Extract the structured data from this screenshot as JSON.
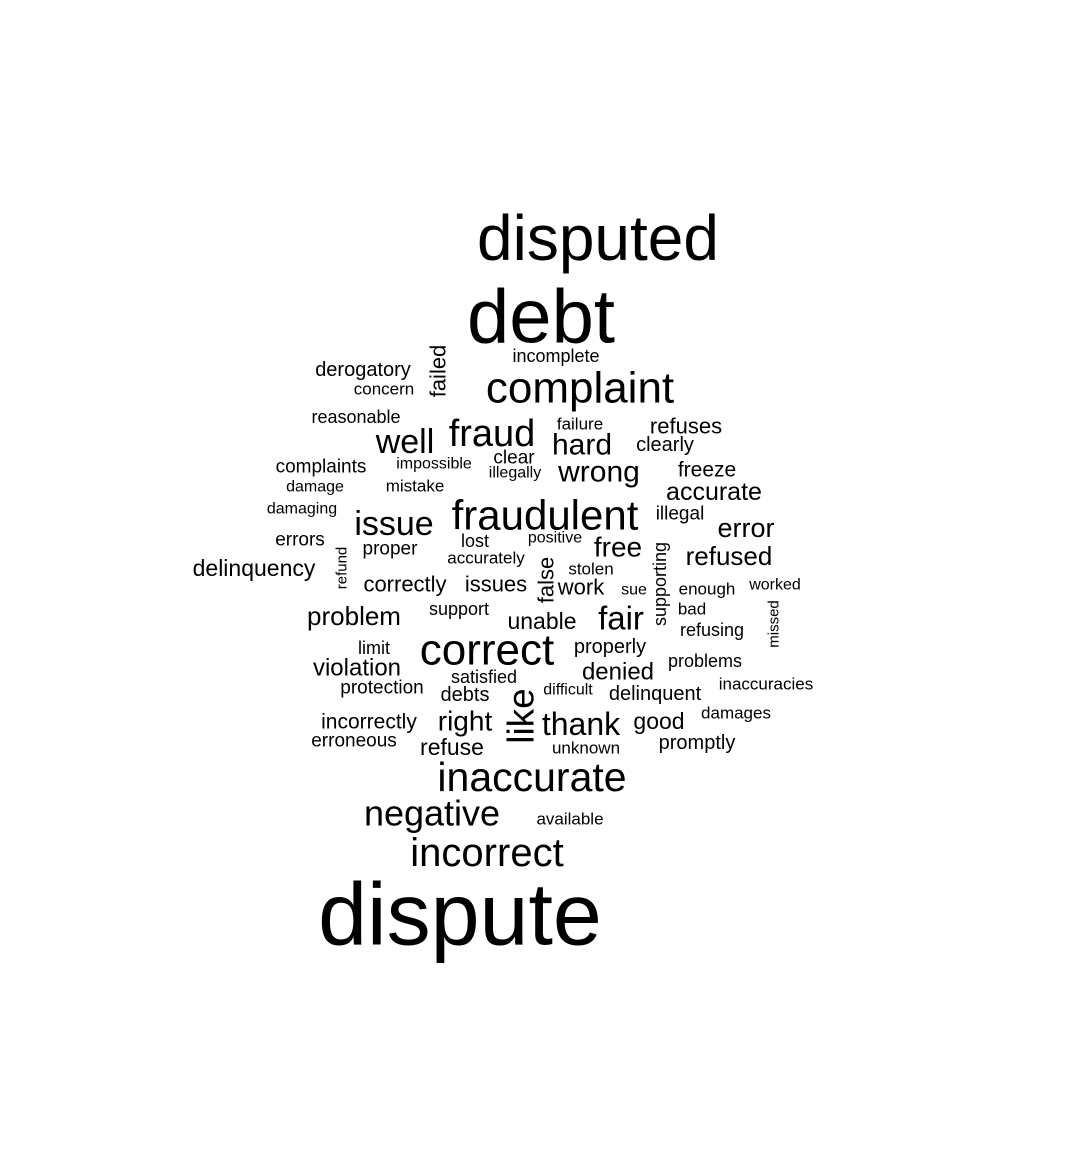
{
  "words": [
    {
      "text": "disputed",
      "weight": 64,
      "rotated": false
    },
    {
      "text": "debt",
      "weight": 76,
      "rotated": false
    },
    {
      "text": "incomplete",
      "weight": 18,
      "rotated": false
    },
    {
      "text": "failed",
      "weight": 22,
      "rotated": true
    },
    {
      "text": "derogatory",
      "weight": 20,
      "rotated": false
    },
    {
      "text": "concern",
      "weight": 17,
      "rotated": false
    },
    {
      "text": "complaint",
      "weight": 44,
      "rotated": false
    },
    {
      "text": "reasonable",
      "weight": 18,
      "rotated": false
    },
    {
      "text": "failure",
      "weight": 17,
      "rotated": false
    },
    {
      "text": "refuses",
      "weight": 22,
      "rotated": false
    },
    {
      "text": "well",
      "weight": 34,
      "rotated": false
    },
    {
      "text": "fraud",
      "weight": 38,
      "rotated": false
    },
    {
      "text": "hard",
      "weight": 30,
      "rotated": false
    },
    {
      "text": "clearly",
      "weight": 20,
      "rotated": false
    },
    {
      "text": "clear",
      "weight": 19,
      "rotated": false
    },
    {
      "text": "complaints",
      "weight": 19,
      "rotated": false
    },
    {
      "text": "impossible",
      "weight": 16,
      "rotated": false
    },
    {
      "text": "illegally",
      "weight": 16,
      "rotated": false
    },
    {
      "text": "wrong",
      "weight": 30,
      "rotated": false
    },
    {
      "text": "freeze",
      "weight": 21,
      "rotated": false
    },
    {
      "text": "damage",
      "weight": 16,
      "rotated": false
    },
    {
      "text": "mistake",
      "weight": 17,
      "rotated": false
    },
    {
      "text": "accurate",
      "weight": 25,
      "rotated": false
    },
    {
      "text": "damaging",
      "weight": 16,
      "rotated": false
    },
    {
      "text": "issue",
      "weight": 34,
      "rotated": false
    },
    {
      "text": "fraudulent",
      "weight": 42,
      "rotated": false
    },
    {
      "text": "illegal",
      "weight": 19,
      "rotated": false
    },
    {
      "text": "error",
      "weight": 27,
      "rotated": false
    },
    {
      "text": "errors",
      "weight": 19,
      "rotated": false
    },
    {
      "text": "refund",
      "weight": 15,
      "rotated": true
    },
    {
      "text": "proper",
      "weight": 19,
      "rotated": false
    },
    {
      "text": "lost",
      "weight": 18,
      "rotated": false
    },
    {
      "text": "positive",
      "weight": 16,
      "rotated": false
    },
    {
      "text": "free",
      "weight": 28,
      "rotated": false
    },
    {
      "text": "supporting",
      "weight": 18,
      "rotated": true
    },
    {
      "text": "refused",
      "weight": 26,
      "rotated": false
    },
    {
      "text": "delinquency",
      "weight": 23,
      "rotated": false
    },
    {
      "text": "accurately",
      "weight": 17,
      "rotated": false
    },
    {
      "text": "false",
      "weight": 22,
      "rotated": true
    },
    {
      "text": "stolen",
      "weight": 17,
      "rotated": false
    },
    {
      "text": "correctly",
      "weight": 22,
      "rotated": false
    },
    {
      "text": "issues",
      "weight": 22,
      "rotated": false
    },
    {
      "text": "work",
      "weight": 22,
      "rotated": false
    },
    {
      "text": "sue",
      "weight": 16,
      "rotated": false
    },
    {
      "text": "enough",
      "weight": 17,
      "rotated": false
    },
    {
      "text": "worked",
      "weight": 16,
      "rotated": false
    },
    {
      "text": "problem",
      "weight": 26,
      "rotated": false
    },
    {
      "text": "support",
      "weight": 18,
      "rotated": false
    },
    {
      "text": "unable",
      "weight": 23,
      "rotated": false
    },
    {
      "text": "fair",
      "weight": 33,
      "rotated": false
    },
    {
      "text": "bad",
      "weight": 17,
      "rotated": false
    },
    {
      "text": "missed",
      "weight": 15,
      "rotated": true
    },
    {
      "text": "refusing",
      "weight": 18,
      "rotated": false
    },
    {
      "text": "limit",
      "weight": 18,
      "rotated": false
    },
    {
      "text": "correct",
      "weight": 44,
      "rotated": false
    },
    {
      "text": "properly",
      "weight": 20,
      "rotated": false
    },
    {
      "text": "violation",
      "weight": 24,
      "rotated": false
    },
    {
      "text": "problems",
      "weight": 18,
      "rotated": false
    },
    {
      "text": "satisfied",
      "weight": 18,
      "rotated": false
    },
    {
      "text": "denied",
      "weight": 24,
      "rotated": false
    },
    {
      "text": "protection",
      "weight": 19,
      "rotated": false
    },
    {
      "text": "debts",
      "weight": 20,
      "rotated": false
    },
    {
      "text": "like",
      "weight": 37,
      "rotated": true
    },
    {
      "text": "difficult",
      "weight": 16,
      "rotated": false
    },
    {
      "text": "delinquent",
      "weight": 20,
      "rotated": false
    },
    {
      "text": "inaccuracies",
      "weight": 17,
      "rotated": false
    },
    {
      "text": "incorrectly",
      "weight": 21,
      "rotated": false
    },
    {
      "text": "right",
      "weight": 28,
      "rotated": false
    },
    {
      "text": "thank",
      "weight": 32,
      "rotated": false
    },
    {
      "text": "good",
      "weight": 23,
      "rotated": false
    },
    {
      "text": "damages",
      "weight": 17,
      "rotated": false
    },
    {
      "text": "erroneous",
      "weight": 19,
      "rotated": false
    },
    {
      "text": "refuse",
      "weight": 23,
      "rotated": false
    },
    {
      "text": "unknown",
      "weight": 17,
      "rotated": false
    },
    {
      "text": "promptly",
      "weight": 20,
      "rotated": false
    },
    {
      "text": "inaccurate",
      "weight": 41,
      "rotated": false
    },
    {
      "text": "negative",
      "weight": 36,
      "rotated": false
    },
    {
      "text": "available",
      "weight": 17,
      "rotated": false
    },
    {
      "text": "incorrect",
      "weight": 40,
      "rotated": false
    },
    {
      "text": "dispute",
      "weight": 88,
      "rotated": false
    }
  ]
}
